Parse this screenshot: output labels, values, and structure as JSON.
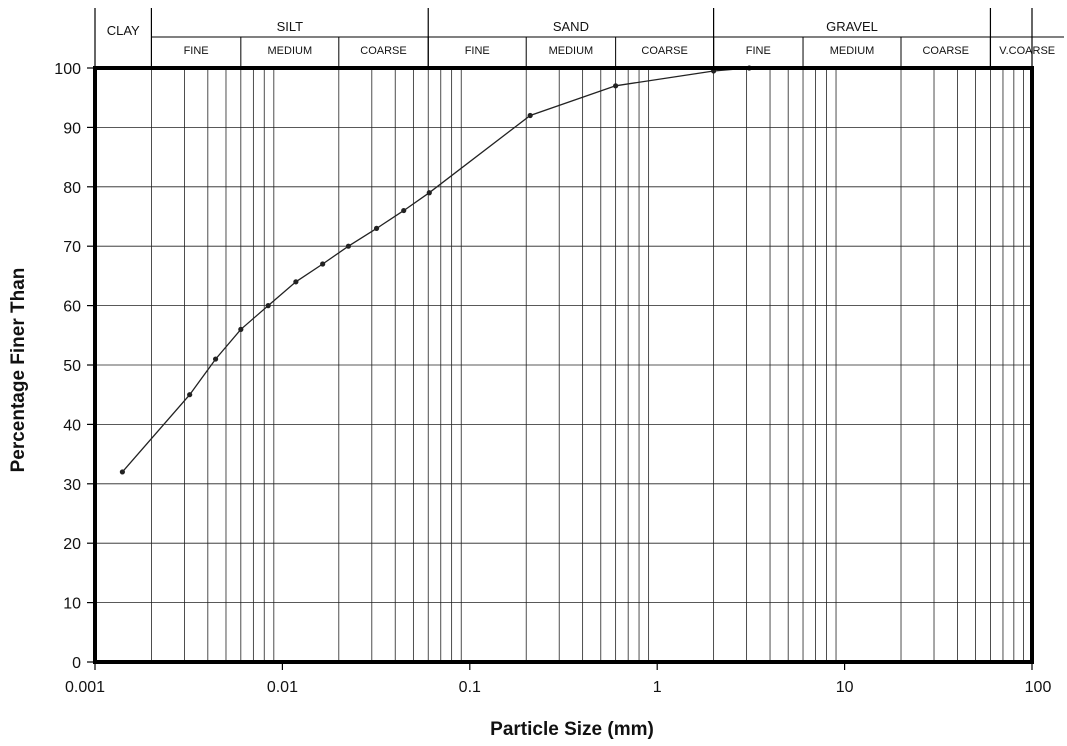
{
  "chart_data": {
    "type": "line",
    "xscale": "log",
    "xlim": [
      0.001,
      100
    ],
    "ylim": [
      0,
      100
    ],
    "xlabel": "Particle Size (mm)",
    "ylabel": "Percentage Finer Than",
    "x_ticks": [
      "0.001",
      "0.01",
      "0.1",
      "1",
      "10",
      "100"
    ],
    "y_ticks": [
      "0",
      "10",
      "20",
      "30",
      "40",
      "50",
      "60",
      "70",
      "80",
      "90",
      "100"
    ],
    "grid": true,
    "legend": "none",
    "series": [
      {
        "x": [
          0.0014,
          0.0032,
          0.0044,
          0.006,
          0.0084,
          0.0118,
          0.0164,
          0.0225,
          0.0318,
          0.0444,
          0.0608,
          0.21,
          0.6,
          2.0,
          3.1
        ],
        "y": [
          32,
          45,
          51,
          56,
          60,
          64,
          67,
          70,
          73,
          76,
          79,
          92,
          97,
          99.5,
          100
        ]
      }
    ]
  },
  "classification": {
    "bands": [
      {
        "label": "CLAY",
        "from": 0.001,
        "to": 0.002,
        "subs": []
      },
      {
        "label": "SILT",
        "from": 0.002,
        "to": 0.06,
        "subs": [
          {
            "label": "FINE",
            "from": 0.002,
            "to": 0.006
          },
          {
            "label": "MEDIUM",
            "from": 0.006,
            "to": 0.02
          },
          {
            "label": "COARSE",
            "from": 0.02,
            "to": 0.06
          }
        ]
      },
      {
        "label": "SAND",
        "from": 0.06,
        "to": 2,
        "subs": [
          {
            "label": "FINE",
            "from": 0.06,
            "to": 0.2
          },
          {
            "label": "MEDIUM",
            "from": 0.2,
            "to": 0.6
          },
          {
            "label": "COARSE",
            "from": 0.6,
            "to": 2
          }
        ]
      },
      {
        "label": "GRAVEL",
        "from": 2,
        "to": 60,
        "subs": [
          {
            "label": "FINE",
            "from": 2,
            "to": 6
          },
          {
            "label": "MEDIUM",
            "from": 6,
            "to": 20
          },
          {
            "label": "COARSE",
            "from": 20,
            "to": 60
          }
        ]
      },
      {
        "label": "V.COARSE",
        "from": 60,
        "to": 100,
        "subs": []
      }
    ]
  },
  "colors": {
    "line": "#222222",
    "grid": "#222222",
    "frame": "#000000"
  }
}
